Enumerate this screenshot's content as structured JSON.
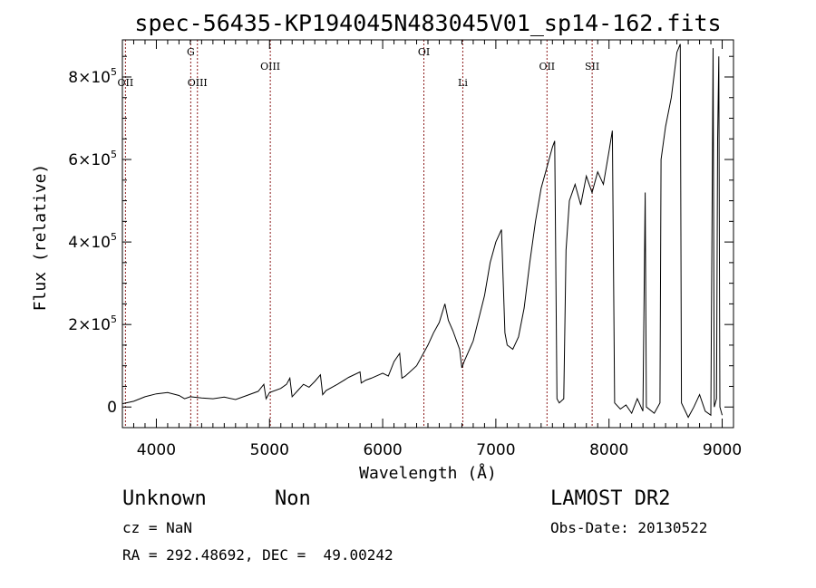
{
  "chart_data": {
    "type": "line",
    "title": "spec-56435-KP194045N483045V01_sp14-162.fits",
    "xlabel": "Wavelength (Å)",
    "ylabel": "Flux (relative)",
    "xlim": [
      3700,
      9100
    ],
    "ylim": [
      -50000,
      890000
    ],
    "x_ticks": [
      4000,
      5000,
      6000,
      7000,
      8000,
      9000
    ],
    "y_ticks": [
      {
        "value": 0,
        "base": "0",
        "exp": ""
      },
      {
        "value": 200000,
        "base": "2×10",
        "exp": "5"
      },
      {
        "value": 400000,
        "base": "4×10",
        "exp": "5"
      },
      {
        "value": 600000,
        "base": "6×10",
        "exp": "5"
      },
      {
        "value": 800000,
        "base": "8×10",
        "exp": "5"
      }
    ],
    "spectral_lines": [
      {
        "label": "OII",
        "wavelength": 3727,
        "tier": "low"
      },
      {
        "label": "G",
        "wavelength": 4304,
        "tier": "high"
      },
      {
        "label": "OIII",
        "wavelength": 4363,
        "tier": "low"
      },
      {
        "label": "OIII",
        "wavelength": 5007,
        "tier": "mid"
      },
      {
        "label": "OI",
        "wavelength": 6364,
        "tier": "high"
      },
      {
        "label": "Li",
        "wavelength": 6708,
        "tier": "low"
      },
      {
        "label": "OII",
        "wavelength": 7452,
        "tier": "mid"
      },
      {
        "label": "SII",
        "wavelength": 7851,
        "tier": "mid"
      }
    ],
    "series": [
      {
        "color": "#000000",
        "points": [
          [
            3700,
            8000
          ],
          [
            3800,
            14000
          ],
          [
            3900,
            25000
          ],
          [
            4000,
            32000
          ],
          [
            4100,
            35000
          ],
          [
            4200,
            28000
          ],
          [
            4250,
            20000
          ],
          [
            4300,
            25000
          ],
          [
            4400,
            22000
          ],
          [
            4500,
            20000
          ],
          [
            4600,
            24000
          ],
          [
            4700,
            18000
          ],
          [
            4800,
            28000
          ],
          [
            4900,
            38000
          ],
          [
            4950,
            55000
          ],
          [
            4970,
            20000
          ],
          [
            5000,
            35000
          ],
          [
            5100,
            45000
          ],
          [
            5150,
            55000
          ],
          [
            5180,
            70000
          ],
          [
            5200,
            25000
          ],
          [
            5250,
            40000
          ],
          [
            5300,
            55000
          ],
          [
            5350,
            48000
          ],
          [
            5400,
            62000
          ],
          [
            5450,
            78000
          ],
          [
            5470,
            30000
          ],
          [
            5500,
            40000
          ],
          [
            5600,
            55000
          ],
          [
            5700,
            72000
          ],
          [
            5800,
            85000
          ],
          [
            5810,
            58000
          ],
          [
            5850,
            65000
          ],
          [
            5900,
            70000
          ],
          [
            6000,
            82000
          ],
          [
            6050,
            75000
          ],
          [
            6100,
            110000
          ],
          [
            6150,
            130000
          ],
          [
            6170,
            70000
          ],
          [
            6200,
            75000
          ],
          [
            6300,
            100000
          ],
          [
            6400,
            150000
          ],
          [
            6450,
            180000
          ],
          [
            6500,
            205000
          ],
          [
            6550,
            250000
          ],
          [
            6580,
            210000
          ],
          [
            6620,
            185000
          ],
          [
            6680,
            140000
          ],
          [
            6700,
            95000
          ],
          [
            6720,
            110000
          ],
          [
            6800,
            160000
          ],
          [
            6900,
            270000
          ],
          [
            6950,
            350000
          ],
          [
            7000,
            400000
          ],
          [
            7050,
            430000
          ],
          [
            7080,
            180000
          ],
          [
            7100,
            150000
          ],
          [
            7150,
            140000
          ],
          [
            7200,
            170000
          ],
          [
            7250,
            240000
          ],
          [
            7300,
            350000
          ],
          [
            7350,
            450000
          ],
          [
            7400,
            530000
          ],
          [
            7450,
            580000
          ],
          [
            7500,
            630000
          ],
          [
            7520,
            645000
          ],
          [
            7540,
            20000
          ],
          [
            7560,
            10000
          ],
          [
            7600,
            20000
          ],
          [
            7620,
            380000
          ],
          [
            7650,
            500000
          ],
          [
            7700,
            540000
          ],
          [
            7750,
            490000
          ],
          [
            7800,
            560000
          ],
          [
            7850,
            520000
          ],
          [
            7900,
            570000
          ],
          [
            7950,
            540000
          ],
          [
            8000,
            620000
          ],
          [
            8030,
            670000
          ],
          [
            8050,
            10000
          ],
          [
            8100,
            -5000
          ],
          [
            8150,
            5000
          ],
          [
            8200,
            -15000
          ],
          [
            8250,
            20000
          ],
          [
            8300,
            -10000
          ],
          [
            8320,
            520000
          ],
          [
            8330,
            0
          ],
          [
            8400,
            -15000
          ],
          [
            8450,
            10000
          ],
          [
            8460,
            600000
          ],
          [
            8500,
            680000
          ],
          [
            8550,
            750000
          ],
          [
            8600,
            860000
          ],
          [
            8630,
            880000
          ],
          [
            8640,
            10000
          ],
          [
            8700,
            -25000
          ],
          [
            8750,
            0
          ],
          [
            8800,
            30000
          ],
          [
            8850,
            -10000
          ],
          [
            8900,
            -20000
          ],
          [
            8920,
            870000
          ],
          [
            8930,
            0
          ],
          [
            8950,
            20000
          ],
          [
            8960,
            650000
          ],
          [
            8970,
            850000
          ],
          [
            8980,
            0
          ],
          [
            9000,
            -20000
          ]
        ]
      }
    ]
  },
  "info": {
    "object_class": "Unknown",
    "object_subclass": "Non",
    "redshift": "cz = NaN",
    "coordinates": "RA = 292.48692, DEC =  49.00242",
    "survey": "LAMOST DR2",
    "obs_date": "Obs-Date: 20130522"
  }
}
